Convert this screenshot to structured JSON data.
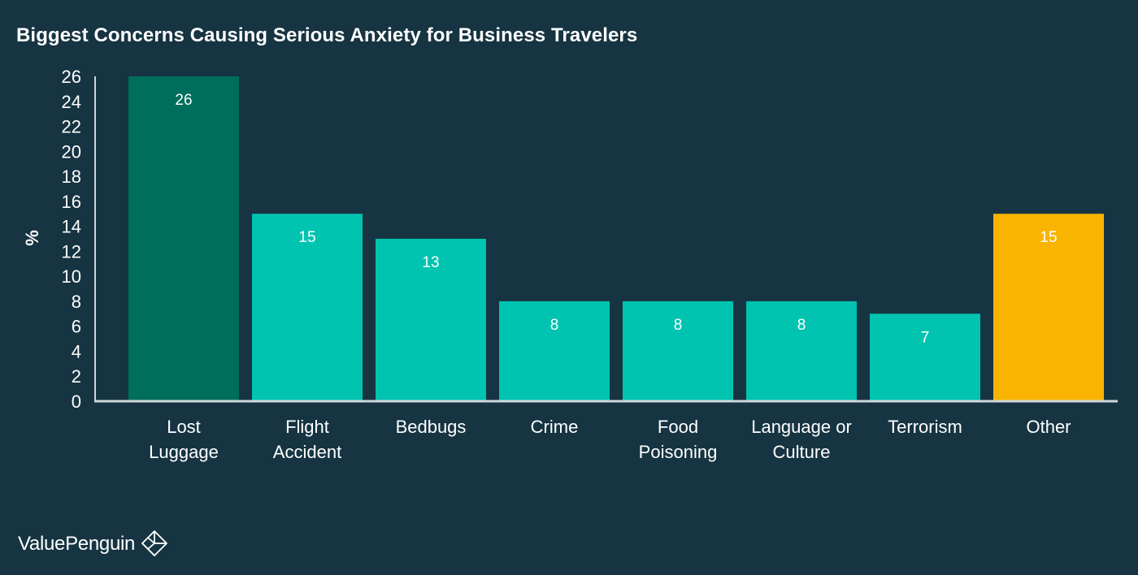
{
  "chart_data": {
    "type": "bar",
    "title": "Biggest Concerns Causing Serious Anxiety for Business Travelers",
    "ylabel": "%",
    "xlabel": "",
    "ylim": [
      0,
      26
    ],
    "yticks": [
      0,
      2,
      4,
      6,
      8,
      10,
      12,
      14,
      16,
      18,
      20,
      22,
      24,
      26
    ],
    "categories": [
      [
        "Lost",
        "Luggage"
      ],
      [
        "Flight",
        "Accident"
      ],
      [
        "Bedbugs"
      ],
      [
        "Crime"
      ],
      [
        "Food",
        "Poisoning"
      ],
      [
        "Language or",
        "Culture"
      ],
      [
        "Terrorism"
      ],
      [
        "Other"
      ]
    ],
    "values": [
      26,
      15,
      13,
      8,
      8,
      8,
      7,
      15
    ],
    "colors": [
      "#006e5c",
      "#00c4b0",
      "#00c4b0",
      "#00c4b0",
      "#00c4b0",
      "#00c4b0",
      "#00c4b0",
      "#f8b400"
    ],
    "grid": false,
    "legend": "none"
  },
  "theme": {
    "background": "#163442",
    "axis_color": "#cfd8dc",
    "text_color": "#ffffff"
  },
  "brand": {
    "name": "ValuePenguin",
    "icon": "valuepenguin-logo-icon"
  }
}
